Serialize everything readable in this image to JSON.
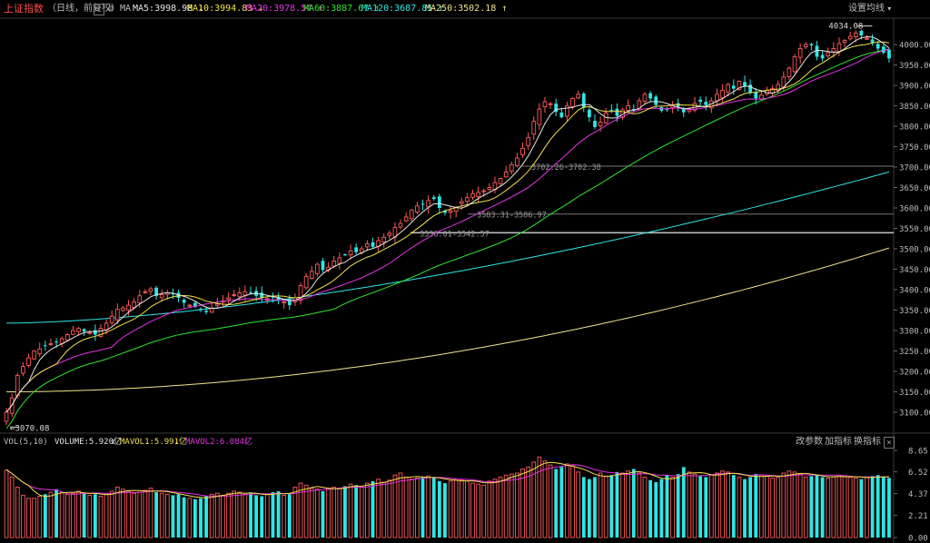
{
  "header": {
    "title": "上证指数",
    "subtitle": "（日线，前复权）",
    "help_label": "?",
    "settings_label": "设置均线",
    "ma_label": "MA",
    "indicators": [
      {
        "name": "MA5",
        "text": "MA5:3998.98",
        "arrow": "↓",
        "color": "#e6e6e6"
      },
      {
        "name": "MA10",
        "text": "MA10:3994.83",
        "arrow": "↓",
        "color": "#f2e14c"
      },
      {
        "name": "MA20",
        "text": "MA20:3978.54",
        "arrow": "↑",
        "color": "#e632e6"
      },
      {
        "name": "MA60",
        "text": "MA60:3887.67",
        "arrow": "↑",
        "color": "#2ee62e"
      },
      {
        "name": "MA120",
        "text": "MA120:3687.85",
        "arrow": "↑",
        "color": "#2ee6e6"
      },
      {
        "name": "MA250",
        "text": "MA250:3502.18",
        "arrow": "↑",
        "color": "#f2e68c"
      }
    ]
  },
  "volume_header": {
    "label": "VOL(5,10)",
    "volume_text": "VOLUME:5.920亿",
    "mavol1_text": "MAVOL1:5.991亿",
    "mavol2_text": "MAVOL2:6.084亿",
    "buttons": [
      "改参数",
      "加指标",
      "换指标"
    ],
    "close_label": "×"
  },
  "chart_data": [
    {
      "type": "candlestick",
      "title": "上证指数",
      "ylim": [
        3060,
        4060
      ],
      "yticks": [
        "4000.00",
        "3950.00",
        "3900.00",
        "3850.00",
        "3800.00",
        "3750.00",
        "3700.00",
        "3650.00",
        "3600.00",
        "3550.00",
        "3500.00",
        "3450.00",
        "3400.00",
        "3350.00",
        "3300.00",
        "3250.00",
        "3200.00",
        "3150.00",
        "3100.00"
      ],
      "annotations": {
        "high_label": "4034.08",
        "low_label": "3070.08",
        "gap_labels": [
          "3702.26-3702.38",
          "3583.31-3586.97",
          "3536.01-3542.57"
        ],
        "gap_levels": [
          3702.3,
          3585.1,
          3539.3
        ]
      },
      "ma_series": [
        {
          "name": "MA5",
          "color": "#e6e6e6"
        },
        {
          "name": "MA10",
          "color": "#f2e14c"
        },
        {
          "name": "MA20",
          "color": "#e632e6"
        },
        {
          "name": "MA60",
          "color": "#2ee62e"
        },
        {
          "name": "MA120",
          "color": "#2ee6e6"
        },
        {
          "name": "MA250",
          "color": "#f2e68c"
        }
      ],
      "close": [
        3100,
        3135,
        3190,
        3212,
        3233,
        3250,
        3255,
        3262,
        3268,
        3272,
        3280,
        3290,
        3300,
        3305,
        3298,
        3295,
        3290,
        3305,
        3318,
        3335,
        3352,
        3355,
        3362,
        3370,
        3385,
        3395,
        3402,
        3385,
        3388,
        3392,
        3390,
        3380,
        3368,
        3362,
        3358,
        3350,
        3345,
        3355,
        3365,
        3372,
        3380,
        3388,
        3392,
        3395,
        3392,
        3385,
        3380,
        3378,
        3382,
        3375,
        3370,
        3362,
        3380,
        3410,
        3432,
        3445,
        3462,
        3448,
        3455,
        3470,
        3478,
        3485,
        3495,
        3492,
        3500,
        3512,
        3505,
        3520,
        3528,
        3538,
        3552,
        3562,
        3578,
        3595,
        3605,
        3610,
        3618,
        3622,
        3600,
        3588,
        3593,
        3602,
        3615,
        3625,
        3635,
        3638,
        3642,
        3650,
        3662,
        3672,
        3688,
        3706,
        3722,
        3746,
        3772,
        3812,
        3842,
        3860,
        3855,
        3835,
        3822,
        3850,
        3868,
        3878,
        3845,
        3822,
        3798,
        3810,
        3832,
        3838,
        3825,
        3840,
        3850,
        3842,
        3862,
        3878,
        3868,
        3852,
        3838,
        3842,
        3852,
        3848,
        3834,
        3842,
        3856,
        3860,
        3852,
        3862,
        3878,
        3888,
        3902,
        3892,
        3910,
        3898,
        3882,
        3868,
        3876,
        3888,
        3892,
        3902,
        3920,
        3942,
        3970,
        3990,
        4000,
        3998,
        3970,
        3966,
        3980,
        3990,
        4002,
        4010,
        4020,
        4028,
        4022,
        4015,
        4005,
        3990,
        3980,
        3966
      ],
      "volume": {
        "unit": "亿",
        "yticks": [
          "8.65",
          "6.52",
          "4.37",
          "2.21",
          "0.00"
        ],
        "ylim": [
          0,
          8.65
        ],
        "values": [
          6.7,
          6.0,
          5.0,
          4.2,
          3.9,
          3.9,
          4.1,
          4.3,
          4.5,
          4.8,
          4.5,
          4.3,
          4.4,
          4.6,
          4.4,
          4.2,
          4.3,
          4.1,
          4.3,
          4.6,
          5.0,
          4.8,
          4.6,
          4.4,
          4.5,
          4.7,
          4.9,
          4.5,
          4.4,
          4.3,
          4.2,
          4.3,
          4.0,
          3.9,
          3.8,
          3.9,
          4.1,
          4.3,
          4.4,
          4.2,
          4.4,
          4.6,
          4.5,
          4.3,
          4.4,
          4.2,
          4.1,
          4.3,
          4.5,
          4.6,
          4.2,
          4.3,
          5.0,
          5.4,
          5.2,
          4.9,
          4.8,
          4.6,
          4.9,
          5.0,
          4.9,
          5.1,
          5.3,
          5.2,
          5.0,
          5.4,
          5.6,
          5.8,
          5.5,
          5.7,
          6.2,
          6.4,
          6.0,
          5.8,
          5.9,
          6.0,
          6.1,
          6.0,
          5.6,
          5.4,
          5.6,
          5.8,
          5.7,
          5.6,
          5.4,
          5.3,
          5.2,
          5.6,
          5.8,
          6.0,
          6.2,
          6.3,
          6.4,
          6.8,
          7.0,
          7.5,
          8.0,
          7.6,
          7.2,
          6.8,
          7.0,
          7.3,
          7.1,
          6.5,
          6.0,
          5.8,
          6.0,
          6.4,
          6.1,
          6.2,
          6.5,
          6.4,
          6.6,
          6.8,
          6.4,
          6.0,
          5.7,
          5.5,
          5.8,
          6.2,
          6.0,
          6.3,
          7.0,
          6.5,
          6.3,
          6.1,
          6.0,
          6.2,
          6.4,
          6.6,
          6.5,
          6.2,
          6.0,
          5.8,
          6.0,
          6.3,
          6.2,
          6.1,
          5.9,
          6.0,
          6.4,
          6.6,
          6.5,
          6.3,
          6.0,
          6.1,
          6.2,
          6.0,
          5.9,
          6.0,
          6.2,
          6.1,
          6.0,
          5.9,
          5.8,
          6.0,
          6.1,
          6.2,
          6.0,
          5.92
        ]
      }
    }
  ]
}
